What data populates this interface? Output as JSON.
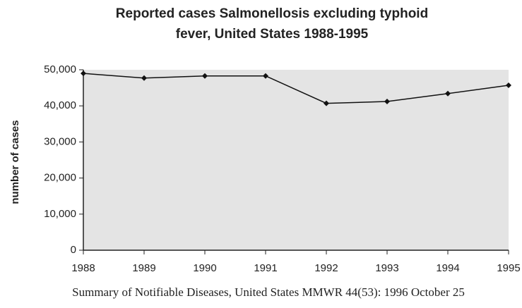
{
  "chart_data": {
    "type": "line",
    "title": [
      "Reported cases Salmonellosis excluding typhoid",
      "fever, United States 1988-1995"
    ],
    "y_label": "number of cases",
    "source": "Summary of Notifiable Diseases, United States MMWR 44(53): 1996 October 25",
    "x": [
      1988,
      1989,
      1990,
      1991,
      1992,
      1993,
      1994,
      1995
    ],
    "values": [
      49000,
      47700,
      48300,
      48300,
      40700,
      41200,
      43400,
      45700
    ],
    "color": "#111111",
    "xlim": [
      1988,
      1995
    ],
    "xticks": [
      1988,
      1989,
      1990,
      1991,
      1992,
      1993,
      1994,
      1995
    ],
    "ylim": [
      0,
      50000
    ],
    "yticks": [
      0,
      {
        "value": 10000,
        "label": "10,000"
      },
      {
        "value": 20000,
        "label": "20,000"
      },
      {
        "value": 30000,
        "label": "30,000"
      },
      {
        "value": 40000,
        "label": "40,000"
      },
      {
        "value": 50000,
        "label": "50,000"
      }
    ]
  }
}
